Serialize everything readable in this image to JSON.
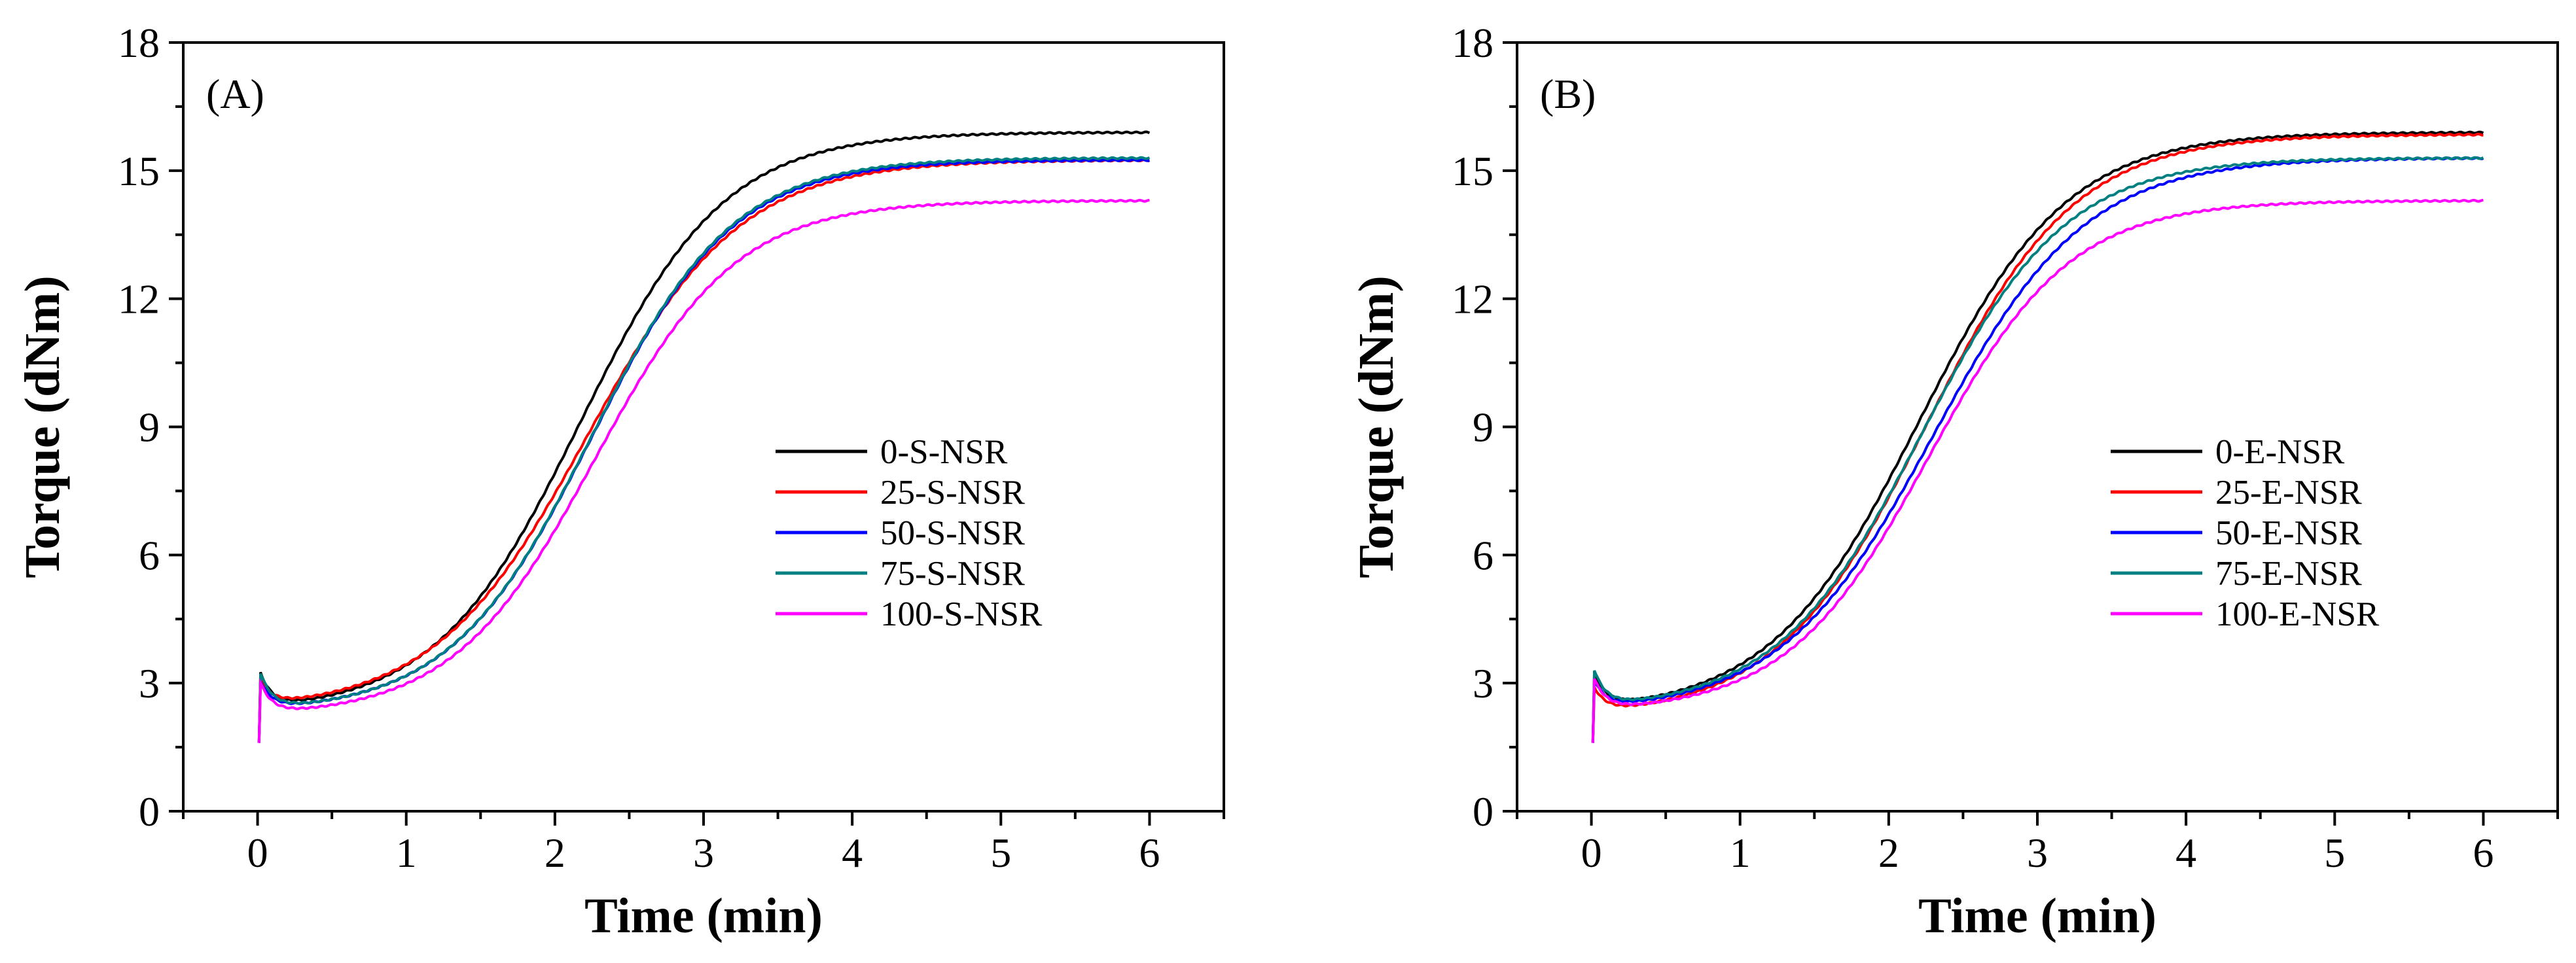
{
  "chart_data": [
    {
      "type": "line",
      "panel_label": "(A)",
      "xlabel": "Time (min)",
      "ylabel": "Torque (dNm)",
      "xlim": [
        -0.5,
        6.5
      ],
      "ylim": [
        0,
        18
      ],
      "xticks": [
        0,
        1,
        2,
        3,
        4,
        5,
        6
      ],
      "yticks": [
        0,
        3,
        6,
        9,
        12,
        15,
        18
      ],
      "legend_position": "center-right",
      "series": [
        {
          "name": "0-S-NSR",
          "color": "#000000",
          "min": 2.3,
          "max": 15.9,
          "t50": 2.17,
          "k": 2.06,
          "peak": 3.3
        },
        {
          "name": "25-S-NSR",
          "color": "#ff0000",
          "min": 2.35,
          "max": 15.25,
          "t50": 2.22,
          "k": 1.95,
          "peak": 3.0
        },
        {
          "name": "50-S-NSR",
          "color": "#0000ff",
          "min": 2.3,
          "max": 15.25,
          "t50": 2.25,
          "k": 2.1,
          "peak": 3.1
        },
        {
          "name": "75-S-NSR",
          "color": "#008080",
          "min": 2.3,
          "max": 15.3,
          "t50": 2.25,
          "k": 2.1,
          "peak": 3.35
        },
        {
          "name": "100-S-NSR",
          "color": "#ff00ff",
          "min": 2.2,
          "max": 14.3,
          "t50": 2.27,
          "k": 2.1,
          "peak": 3.2
        }
      ]
    },
    {
      "type": "line",
      "panel_label": "(B)",
      "xlabel": "Time (min)",
      "ylabel": "Torque (dNm)",
      "xlim": [
        -0.5,
        6.5
      ],
      "ylim": [
        0,
        18
      ],
      "xticks": [
        0,
        1,
        2,
        3,
        4,
        5,
        6
      ],
      "yticks": [
        0,
        3,
        6,
        9,
        12,
        15,
        18
      ],
      "legend_position": "center-right",
      "series": [
        {
          "name": "0-E-NSR",
          "color": "#000000",
          "min": 2.3,
          "max": 15.9,
          "t50": 2.2,
          "k": 2.0,
          "peak": 3.3
        },
        {
          "name": "25-E-NSR",
          "color": "#ff0000",
          "min": 2.2,
          "max": 15.85,
          "t50": 2.25,
          "k": 2.0,
          "peak": 3.0
        },
        {
          "name": "50-E-NSR",
          "color": "#0000ff",
          "min": 2.3,
          "max": 15.3,
          "t50": 2.3,
          "k": 1.95,
          "peak": 3.1
        },
        {
          "name": "75-E-NSR",
          "color": "#008080",
          "min": 2.35,
          "max": 15.3,
          "t50": 2.22,
          "k": 2.05,
          "peak": 3.35
        },
        {
          "name": "100-E-NSR",
          "color": "#ff00ff",
          "min": 2.3,
          "max": 14.3,
          "t50": 2.27,
          "k": 2.1,
          "peak": 3.2
        }
      ]
    }
  ]
}
